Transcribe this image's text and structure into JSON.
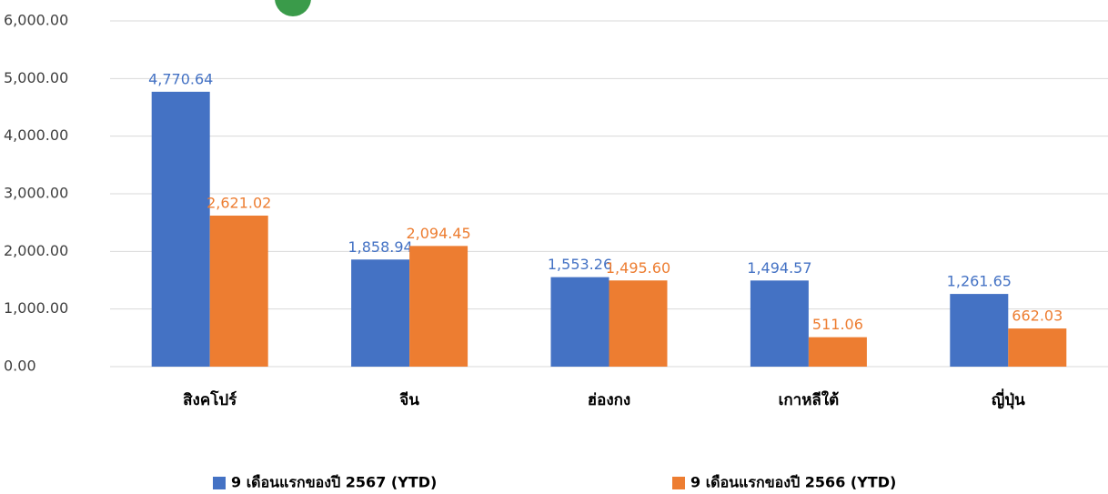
{
  "chart_data": {
    "type": "bar",
    "categories": [
      "สิงคโปร์",
      "จีน",
      "ฮ่องกง",
      "เกาหลีใต้",
      "ญี่ปุ่น"
    ],
    "series": [
      {
        "name": "9 เดือนแรกของปี 2567 (YTD)",
        "color": "#4472c4",
        "values": [
          4770.64,
          1858.94,
          1553.26,
          1494.57,
          1261.65
        ],
        "value_labels": [
          "4,770.64",
          "1,858.94",
          "1,553.26",
          "1,494.57",
          "1,261.65"
        ]
      },
      {
        "name": "9 เดือนแรกของปี 2566 (YTD)",
        "color": "#ed7d31",
        "values": [
          2621.02,
          2094.45,
          1495.6,
          511.06,
          662.03
        ],
        "value_labels": [
          "2,621.02",
          "2,094.45",
          "1,495.60",
          "511.06",
          "662.03"
        ]
      }
    ],
    "ylim": [
      0,
      6000
    ],
    "yticks": [
      {
        "value": 0,
        "label": "0.00"
      },
      {
        "value": 1000,
        "label": "1,000.00"
      },
      {
        "value": 2000,
        "label": "2,000.00"
      },
      {
        "value": 3000,
        "label": "3,000.00"
      },
      {
        "value": 4000,
        "label": "4,000.00"
      },
      {
        "value": 5000,
        "label": "5,000.00"
      },
      {
        "value": 6000,
        "label": "6,000.00"
      }
    ],
    "grid": true,
    "legend": "bottom"
  }
}
